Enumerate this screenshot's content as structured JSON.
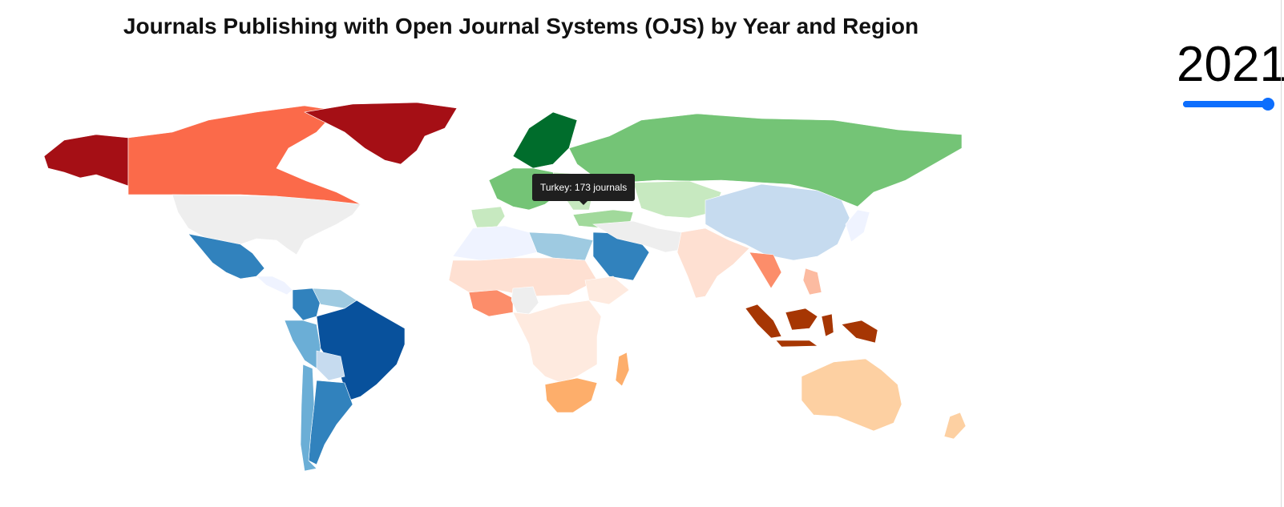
{
  "title": "Journals Publishing with Open Journal Systems (OJS) by Year and Region",
  "year_control": {
    "value": "2021",
    "slider_fraction": 1.0
  },
  "tooltip": {
    "text": "Turkey: 173 journals"
  },
  "colors": {
    "americas": {
      "darkest": "#08519c",
      "dark": "#3182bd",
      "mid": "#6baed6",
      "light": "#9ecae1",
      "lighter": "#c6dbef",
      "lightest": "#eff3ff"
    },
    "north_america": {
      "dark": "#a50f15",
      "mid": "#fb6a4a"
    },
    "europe": {
      "darkest": "#006d2c",
      "mid": "#74c476",
      "light": "#a1d99b",
      "lighter": "#c7e9c0"
    },
    "africa": {
      "mid": "#fc8d6a",
      "light": "#fcbba1",
      "lightest": "#fee0d2"
    },
    "asia_pacific": {
      "darkest": "#a63603",
      "dark": "#e6550d",
      "mid": "#fdae6b",
      "light": "#fdd0a2",
      "lightest": "#feeadf"
    },
    "no_data": "#eeeeee"
  },
  "countries": [
    {
      "name": "Alaska",
      "color": "#a50f15"
    },
    {
      "name": "Canada",
      "color": "#fb6a4a"
    },
    {
      "name": "United States",
      "color": "#a50f15"
    },
    {
      "name": "Greenland",
      "color": "#eeeeee"
    },
    {
      "name": "Mexico",
      "color": "#3182bd"
    },
    {
      "name": "Central America",
      "color": "#eff3ff"
    },
    {
      "name": "Colombia",
      "color": "#3182bd"
    },
    {
      "name": "Venezuela",
      "color": "#9ecae1"
    },
    {
      "name": "Peru",
      "color": "#6baed6"
    },
    {
      "name": "Brazil",
      "color": "#08519c"
    },
    {
      "name": "Bolivia",
      "color": "#c6dbef"
    },
    {
      "name": "Argentina",
      "color": "#3182bd"
    },
    {
      "name": "Chile",
      "color": "#6baed6"
    },
    {
      "name": "Spain",
      "color": "#006d2c"
    },
    {
      "name": "Western Europe",
      "color": "#74c476"
    },
    {
      "name": "Eastern Europe",
      "color": "#c7e9c0"
    },
    {
      "name": "Scandinavia",
      "color": "#c7e9c0"
    },
    {
      "name": "Russia",
      "color": "#74c476"
    },
    {
      "name": "Turkey",
      "color": "#a1d99b"
    },
    {
      "name": "Kazakhstan",
      "color": "#c7e9c0"
    },
    {
      "name": "North Africa",
      "color": "#c6dbef"
    },
    {
      "name": "Egypt",
      "color": "#eff3ff"
    },
    {
      "name": "Middle East",
      "color": "#eff3ff"
    },
    {
      "name": "Iran",
      "color": "#9ecae1"
    },
    {
      "name": "India",
      "color": "#3182bd"
    },
    {
      "name": "Sahara",
      "color": "#eeeeee"
    },
    {
      "name": "West Africa",
      "color": "#fee0d2"
    },
    {
      "name": "Nigeria",
      "color": "#fc8d6a"
    },
    {
      "name": "Ethiopia",
      "color": "#fcbba1"
    },
    {
      "name": "Central Africa",
      "color": "#fee0d2"
    },
    {
      "name": "South Africa",
      "color": "#fc8d6a"
    },
    {
      "name": "Madagascar",
      "color": "#eeeeee"
    },
    {
      "name": "China",
      "color": "#feeadf"
    },
    {
      "name": "Japan",
      "color": "#feeadf"
    },
    {
      "name": "Thailand",
      "color": "#fdae6b"
    },
    {
      "name": "Philippines",
      "color": "#fdae6b"
    },
    {
      "name": "Sumatra",
      "color": "#a63603"
    },
    {
      "name": "Borneo",
      "color": "#a63603"
    },
    {
      "name": "Sulawesi",
      "color": "#a63603"
    },
    {
      "name": "Java",
      "color": "#a63603"
    },
    {
      "name": "New Guinea",
      "color": "#a63603"
    },
    {
      "name": "Australia",
      "color": "#fdd0a2"
    },
    {
      "name": "New Zealand",
      "color": "#fdd0a2"
    }
  ]
}
